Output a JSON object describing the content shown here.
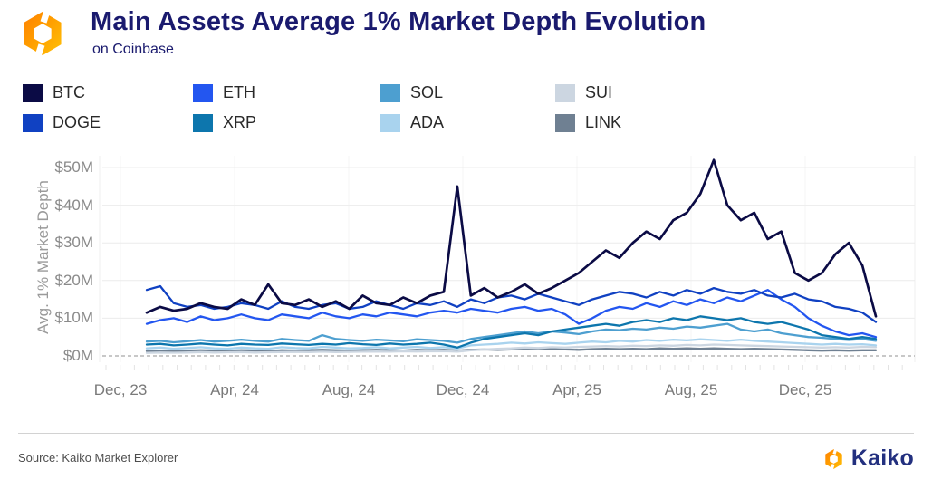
{
  "header": {
    "title": "Main Assets Average 1% Market Depth Evolution",
    "subtitle": "on Coinbase",
    "logo_icon": "kaiko-logo-icon"
  },
  "footer": {
    "source_text": "Source: Kaiko Market Explorer",
    "brand_name": "Kaiko",
    "brand_icon": "kaiko-logo-icon"
  },
  "colors": {
    "title_navy": "#1a1a6e",
    "grid_line": "#ececec",
    "zero_dash_line": "#b5b5b5",
    "axis_text": "#8a8a8a",
    "logo_orange_light": "#ffc107",
    "logo_orange_dark": "#ff8000"
  },
  "chart_data": {
    "type": "line",
    "title": "Main Assets Average 1% Market Depth Evolution",
    "subtitle": "on Coinbase",
    "ylabel": "Avg. 1% Market Depth",
    "xlabel": "",
    "ylim": [
      0,
      50
    ],
    "grid": "horizontal",
    "legend_position": "top",
    "y_tick_labels": [
      "$0M",
      "$10M",
      "$20M",
      "$30M",
      "$40M",
      "$50M"
    ],
    "y_tick_values": [
      0,
      10,
      20,
      30,
      40,
      50
    ],
    "x_tick_labels": [
      "Dec, 23",
      "Apr, 24",
      "Aug, 24",
      "Dec, 24",
      "Apr, 25",
      "Aug, 25",
      "Dec, 25"
    ],
    "x_range_note": "late Dec 2023 to mid Feb 2026, values in $ millions",
    "draw_order": [
      "LINK",
      "SUI",
      "ADA",
      "SOL",
      "XRP",
      "ETH",
      "DOGE",
      "BTC"
    ],
    "series": [
      {
        "name": "BTC",
        "color": "#0b0b45",
        "values": [
          11.5,
          13,
          12,
          12.5,
          14,
          13,
          12.5,
          15,
          13.5,
          19,
          14,
          13.5,
          15,
          13,
          14.5,
          12.5,
          16,
          14,
          13.5,
          15.5,
          14,
          16,
          17,
          45,
          16,
          18,
          15.5,
          17,
          19,
          16.5,
          18,
          20,
          22,
          25,
          28,
          26,
          30,
          33,
          31,
          36,
          38,
          43,
          52,
          40,
          36,
          38,
          31,
          33,
          22,
          20,
          22,
          27,
          30,
          24,
          10.5
        ]
      },
      {
        "name": "ETH",
        "color": "#2356f0",
        "values": [
          8.5,
          9.5,
          10,
          9,
          10.5,
          9.5,
          10,
          11,
          10,
          9.5,
          11,
          10.5,
          10,
          11.5,
          10.5,
          10,
          11,
          10.5,
          11.5,
          11,
          10.5,
          11.5,
          12,
          11.5,
          12.5,
          12,
          11.5,
          12.5,
          13,
          12,
          12.5,
          11,
          8.5,
          10,
          12,
          13,
          12.5,
          14,
          13,
          14.5,
          13.5,
          15,
          14,
          15.5,
          14.5,
          16,
          17.5,
          15,
          13,
          10,
          8,
          6.5,
          5.5,
          6,
          5
        ]
      },
      {
        "name": "SOL",
        "color": "#4d9fd0",
        "values": [
          3.8,
          4,
          3.6,
          3.9,
          4.2,
          3.8,
          4,
          4.3,
          4,
          3.8,
          4.5,
          4.2,
          4,
          5.5,
          4.5,
          4.2,
          4,
          4.3,
          4.1,
          3.9,
          4.4,
          4.2,
          4,
          3.5,
          4.5,
          5,
          5.5,
          6,
          6.5,
          6,
          6.5,
          6.2,
          5.8,
          6.5,
          7,
          6.8,
          7.2,
          7,
          7.5,
          7.2,
          7.8,
          7.5,
          8,
          8.5,
          7,
          6.5,
          7,
          6,
          5.5,
          5,
          4.8,
          4.5,
          4.2,
          4.5,
          4
        ]
      },
      {
        "name": "SUI",
        "color": "#ccd6e1",
        "values": [
          0.8,
          0.9,
          0.85,
          0.9,
          1,
          0.9,
          0.95,
          1,
          0.9,
          0.95,
          1,
          1.05,
          1,
          1.1,
          1,
          1.05,
          1.1,
          1.15,
          1.1,
          1.2,
          1.15,
          1.2,
          1.25,
          1.1,
          1.5,
          1.7,
          1.9,
          2,
          2.2,
          2.1,
          2.3,
          2.2,
          2.4,
          2.5,
          2.6,
          2.5,
          2.7,
          2.6,
          2.8,
          2.7,
          2.9,
          2.8,
          3,
          2.9,
          2.8,
          2.7,
          2.6,
          2.5,
          2.4,
          2.3,
          2.2,
          2.3,
          2.2,
          2.4,
          2.3
        ]
      },
      {
        "name": "DOGE",
        "color": "#1041c2",
        "values": [
          17.5,
          18.5,
          14,
          13,
          13.5,
          12.5,
          13,
          14,
          13.5,
          12.5,
          14.5,
          13,
          12.5,
          13.5,
          14,
          12.5,
          13,
          14.5,
          13.5,
          12.5,
          14,
          13.5,
          14.5,
          13,
          15,
          14,
          15.5,
          16,
          15,
          16.5,
          15.5,
          14.5,
          13.5,
          15,
          16,
          17,
          16.5,
          15.5,
          17,
          16,
          17.5,
          16.5,
          18,
          17,
          16.5,
          17.5,
          16,
          15.5,
          16.5,
          15,
          14.5,
          13,
          12.5,
          11.5,
          9
        ]
      },
      {
        "name": "XRP",
        "color": "#0d76ad",
        "values": [
          3,
          3.2,
          2.8,
          3,
          3.3,
          3,
          2.8,
          3.2,
          3,
          2.9,
          3.3,
          3.1,
          2.9,
          3.2,
          3,
          3.4,
          3.1,
          2.9,
          3.3,
          3,
          3.2,
          3.5,
          3,
          2.2,
          3.5,
          4.5,
          5,
          5.5,
          6,
          5.5,
          6.5,
          7,
          7.5,
          8,
          8.5,
          8,
          9,
          9.5,
          9,
          10,
          9.5,
          10.5,
          10,
          9.5,
          10,
          9,
          8.5,
          9,
          8,
          7,
          5.5,
          5,
          4.5,
          5,
          4.5
        ]
      },
      {
        "name": "ADA",
        "color": "#a9d3ee",
        "values": [
          2,
          2.2,
          1.9,
          2.1,
          2.3,
          2,
          1.9,
          2.2,
          2,
          1.9,
          2.3,
          2.1,
          2,
          2.4,
          2.2,
          2,
          2.1,
          2.3,
          2,
          2.2,
          2.4,
          2.1,
          2.3,
          2,
          2.8,
          3,
          3.2,
          3.5,
          3.3,
          3.6,
          3.4,
          3.2,
          3.5,
          3.8,
          3.6,
          4,
          3.8,
          4.2,
          4,
          4.3,
          4.1,
          4.4,
          4.2,
          4,
          4.3,
          4,
          3.8,
          3.6,
          3.4,
          3.2,
          3,
          3.2,
          3,
          3.1,
          2.8
        ]
      },
      {
        "name": "LINK",
        "color": "#6f8092",
        "values": [
          1.3,
          1.4,
          1.3,
          1.4,
          1.5,
          1.4,
          1.3,
          1.5,
          1.4,
          1.3,
          1.5,
          1.4,
          1.5,
          1.6,
          1.5,
          1.4,
          1.5,
          1.6,
          1.5,
          1.4,
          1.6,
          1.5,
          1.6,
          1.4,
          1.6,
          1.7,
          1.6,
          1.7,
          1.8,
          1.7,
          1.8,
          1.7,
          1.6,
          1.8,
          1.9,
          1.8,
          1.9,
          1.8,
          2,
          1.9,
          2,
          1.9,
          2,
          1.9,
          1.8,
          1.9,
          1.8,
          1.7,
          1.6,
          1.5,
          1.4,
          1.5,
          1.4,
          1.5,
          1.5
        ]
      }
    ]
  }
}
